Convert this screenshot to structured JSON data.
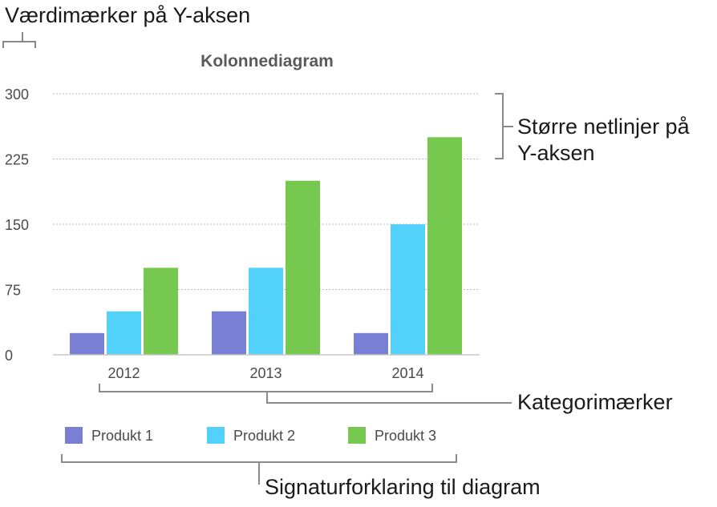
{
  "annotations": {
    "y_value_marks": "Værdimærker på Y-aksen",
    "major_gridlines_line1": "Større netlinjer på",
    "major_gridlines_line2": "Y-aksen",
    "category_marks": "Kategorimærker",
    "legend_label": "Signaturforklaring til diagram"
  },
  "chart_data": {
    "type": "bar",
    "title": "Kolonnediagram",
    "xlabel": "",
    "ylabel": "",
    "categories": [
      "2012",
      "2013",
      "2014"
    ],
    "ylim": [
      0,
      300
    ],
    "yticks": [
      "0",
      "75",
      "150",
      "225",
      "300"
    ],
    "grid": true,
    "legend_position": "bottom",
    "series": [
      {
        "name": "Produkt 1",
        "color": "#7a7fd6",
        "values": [
          25,
          50,
          25
        ]
      },
      {
        "name": "Produkt 2",
        "color": "#52d2fb",
        "values": [
          50,
          100,
          150
        ]
      },
      {
        "name": "Produkt 3",
        "color": "#76c84f",
        "values": [
          100,
          200,
          250
        ]
      }
    ]
  }
}
